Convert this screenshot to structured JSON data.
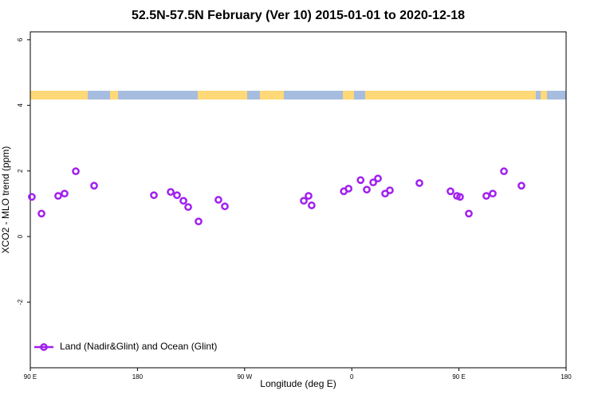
{
  "chart_data": {
    "type": "scatter",
    "title": "52.5N-57.5N February (Ver 10)   2015-01-01 to 2020-12-18",
    "x_label": "Longitude (deg E)",
    "y_label": "XCO2 - MLO trend (ppm)",
    "xlim": [
      -270,
      180
    ],
    "ylim": [
      -4,
      6.24
    ],
    "xticks": [
      {
        "value": -270,
        "label": "90 E"
      },
      {
        "value": -180,
        "label": "180"
      },
      {
        "value": -90,
        "label": "90 W"
      },
      0,
      {
        "value": 90,
        "label": "90 E"
      },
      {
        "value": 180,
        "label": "180"
      }
    ],
    "yticks": [
      -2,
      0,
      2,
      4,
      6
    ],
    "legend_position": "bottom-left",
    "series": [
      {
        "name": "Land (Nadir&Glint) and Ocean (Glint)",
        "color": "#a020f0",
        "x": [
          -268.7,
          -260.6,
          -246.6,
          -241.2,
          -231.8,
          -216.4,
          -166.2,
          -152.1,
          -146.8,
          -141.4,
          -137.4,
          -128.7,
          -112.0,
          -106.6,
          -40.3,
          -36.3,
          -33.7,
          -6.7,
          -2.7,
          7.4,
          12.6,
          18.0,
          22.0,
          28.0,
          32.0,
          56.8,
          82.9,
          88.3,
          90.9,
          98.3,
          113.0,
          118.4,
          127.8,
          142.5
        ],
        "values": [
          1.21,
          0.7,
          1.24,
          1.31,
          1.99,
          1.55,
          1.26,
          1.36,
          1.26,
          1.09,
          0.9,
          0.46,
          1.12,
          0.92,
          1.09,
          1.24,
          0.95,
          1.38,
          1.46,
          1.72,
          1.43,
          1.65,
          1.77,
          1.31,
          1.41,
          1.63,
          1.38,
          1.24,
          1.21,
          0.7,
          1.24,
          1.31,
          1.99,
          1.55
        ]
      }
    ]
  }
}
